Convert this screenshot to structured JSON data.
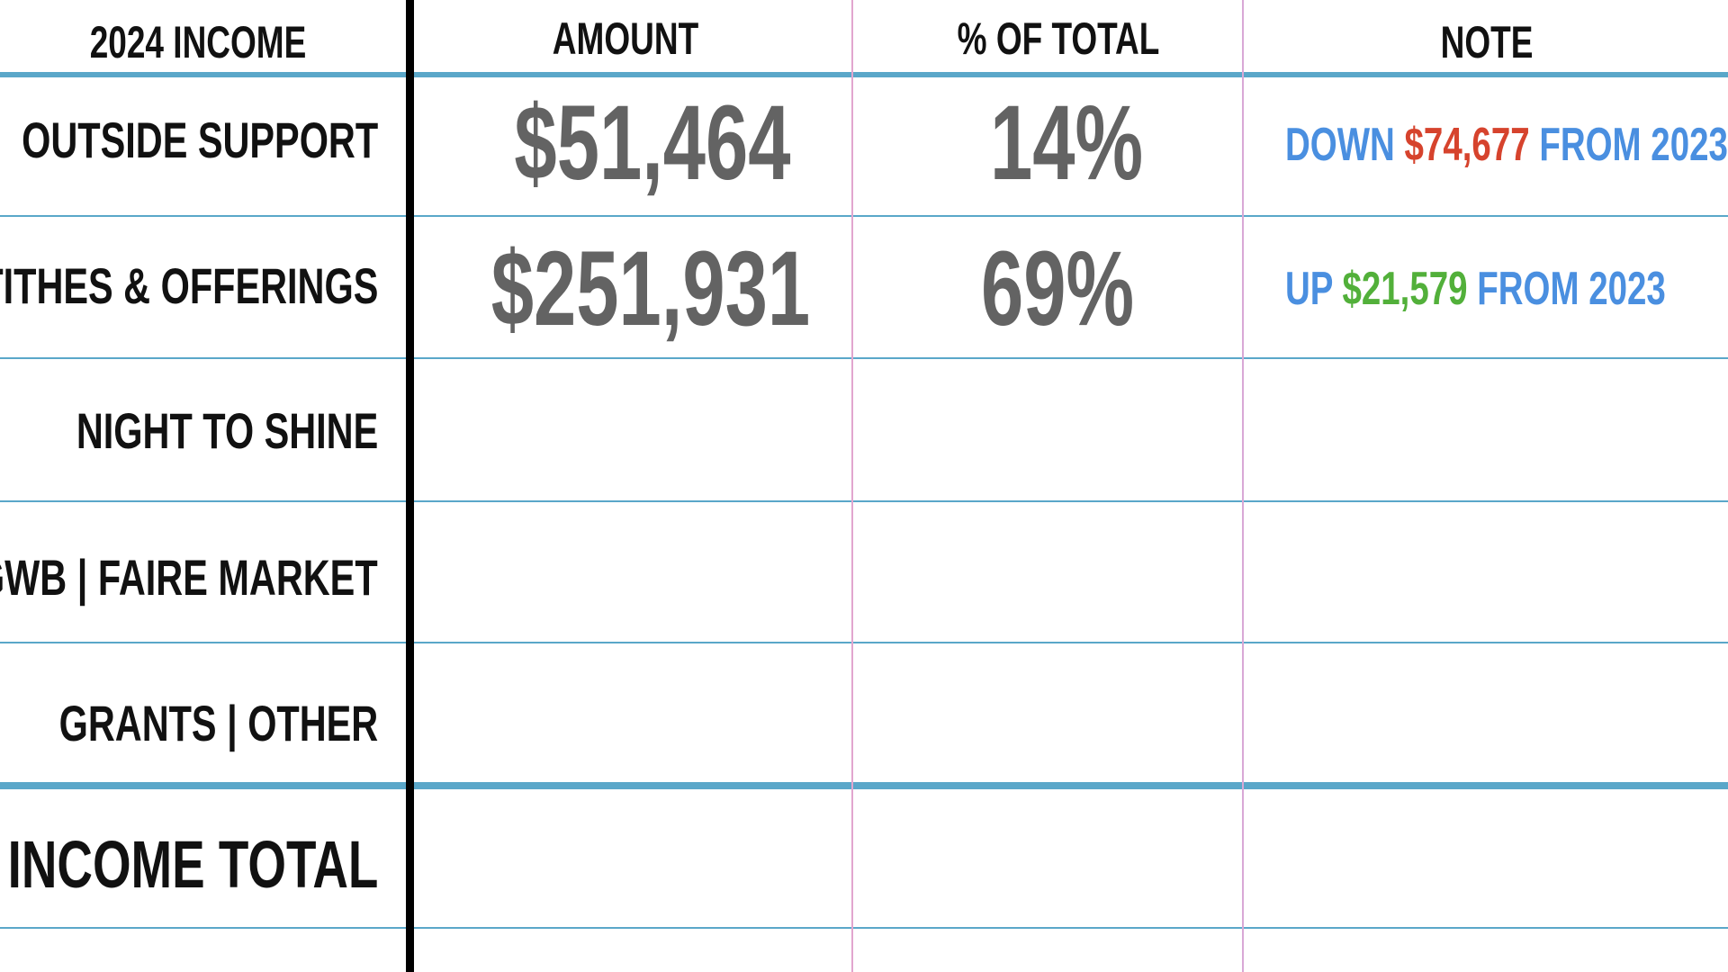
{
  "headers": {
    "category": "2024 INCOME",
    "amount": "AMOUNT",
    "percent": "% OF TOTAL",
    "note": "NOTE"
  },
  "rows": [
    {
      "label": "OUTSIDE SUPPORT",
      "amount": "$51,464",
      "percent": "14%",
      "note": {
        "prefix": "DOWN",
        "value": "$74,677",
        "suffix": "FROM 2023",
        "direction": "down"
      }
    },
    {
      "label": "TITHES & OFFERINGS",
      "amount": "$251,931",
      "percent": "69%",
      "note": {
        "prefix": "UP",
        "value": "$21,579",
        "suffix": "FROM 2023",
        "direction": "up"
      }
    },
    {
      "label": "NIGHT TO SHINE",
      "amount": "",
      "percent": "",
      "note": null
    },
    {
      "label": "GWB | FAIRE MARKET",
      "amount": "",
      "percent": "",
      "note": null
    },
    {
      "label": "GRANTS | OTHER",
      "amount": "",
      "percent": "",
      "note": null
    }
  ],
  "total": {
    "label": "INCOME TOTAL",
    "amount": "",
    "percent": "",
    "note": ""
  },
  "colors": {
    "rule": "#5aa7c9",
    "column_divider": "#e2a6cf",
    "value_text": "#636363",
    "note_text": "#4a8fe0",
    "decrease": "#d6432d",
    "increase": "#52b03a"
  }
}
